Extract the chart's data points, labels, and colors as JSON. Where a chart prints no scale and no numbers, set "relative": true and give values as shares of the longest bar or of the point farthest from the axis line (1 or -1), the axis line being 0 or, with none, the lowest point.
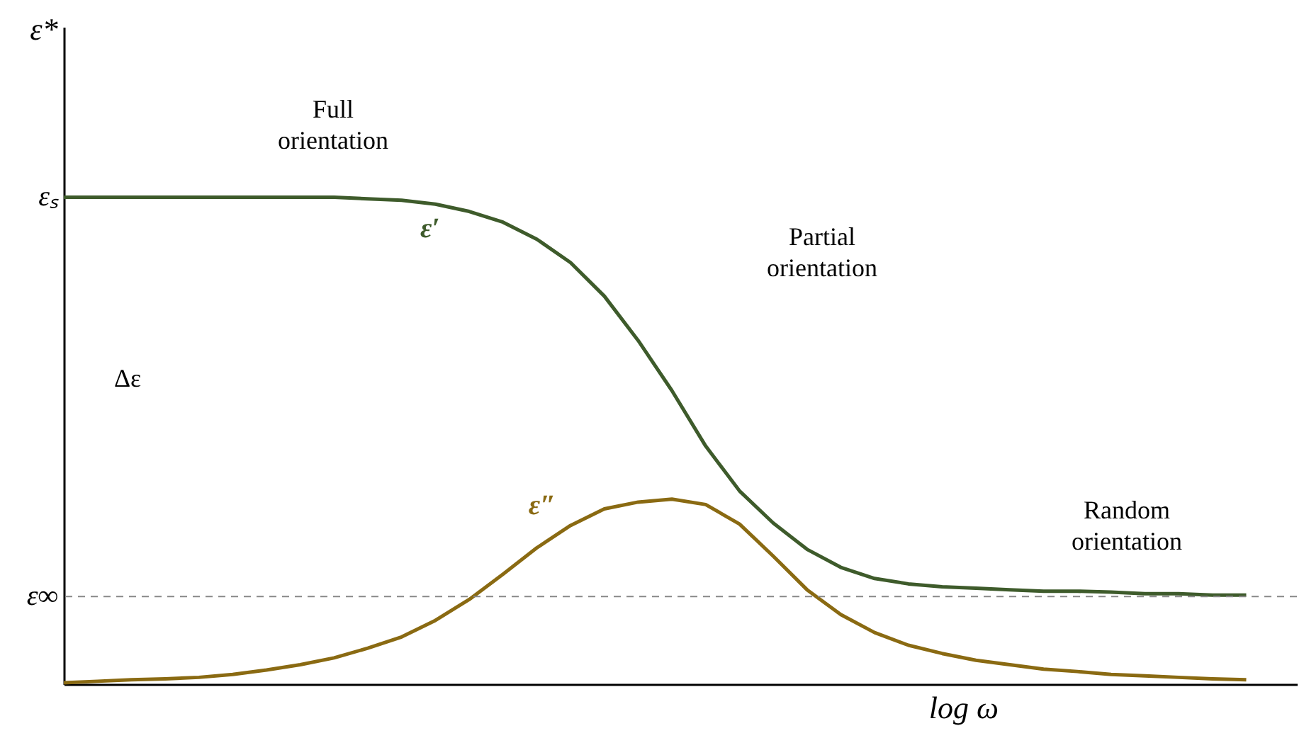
{
  "chart_data": {
    "type": "line",
    "relative": true,
    "ylabel": "ε*",
    "xlabel": "log ω",
    "categories": [
      null,
      null,
      null,
      null,
      null,
      null,
      null,
      null,
      null,
      null,
      null,
      null,
      null,
      null,
      null,
      null,
      null,
      null,
      null,
      null,
      null,
      null,
      null,
      null,
      null,
      null,
      null,
      null,
      null,
      null,
      null,
      null,
      null,
      null,
      null,
      null
    ],
    "series": [
      {
        "name": "ε′",
        "color": "#3e5b2b",
        "values": [
          1.0,
          1.0,
          1.0,
          1.0,
          1.0,
          1.0,
          1.0,
          1.0,
          1.0,
          0.997,
          0.994,
          0.986,
          0.971,
          0.949,
          0.914,
          0.866,
          0.797,
          0.706,
          0.603,
          0.489,
          0.397,
          0.331,
          0.277,
          0.24,
          0.217,
          0.206,
          0.2,
          0.197,
          0.194,
          0.191,
          0.191,
          0.189,
          0.186,
          0.186,
          0.183,
          0.183
        ]
      },
      {
        "name": "ε″",
        "color": "#8a6a12",
        "values": [
          0.003,
          0.006,
          0.009,
          0.011,
          0.014,
          0.02,
          0.029,
          0.04,
          0.054,
          0.074,
          0.097,
          0.131,
          0.174,
          0.226,
          0.28,
          0.326,
          0.36,
          0.374,
          0.38,
          0.369,
          0.329,
          0.263,
          0.194,
          0.143,
          0.106,
          0.08,
          0.063,
          0.049,
          0.04,
          0.031,
          0.026,
          0.02,
          0.017,
          0.014,
          0.011,
          0.009
        ]
      }
    ],
    "ref_lines": [
      {
        "axis": "y",
        "value": 0.18,
        "label": "ε∞",
        "color": "#888888",
        "line_style": "dashed"
      }
    ],
    "annotations": [
      "εₛ",
      "Full orientation",
      "Partial orientation",
      "Random orientation",
      "Δε"
    ],
    "marker": "none",
    "line_style": "solid",
    "grid": false
  }
}
